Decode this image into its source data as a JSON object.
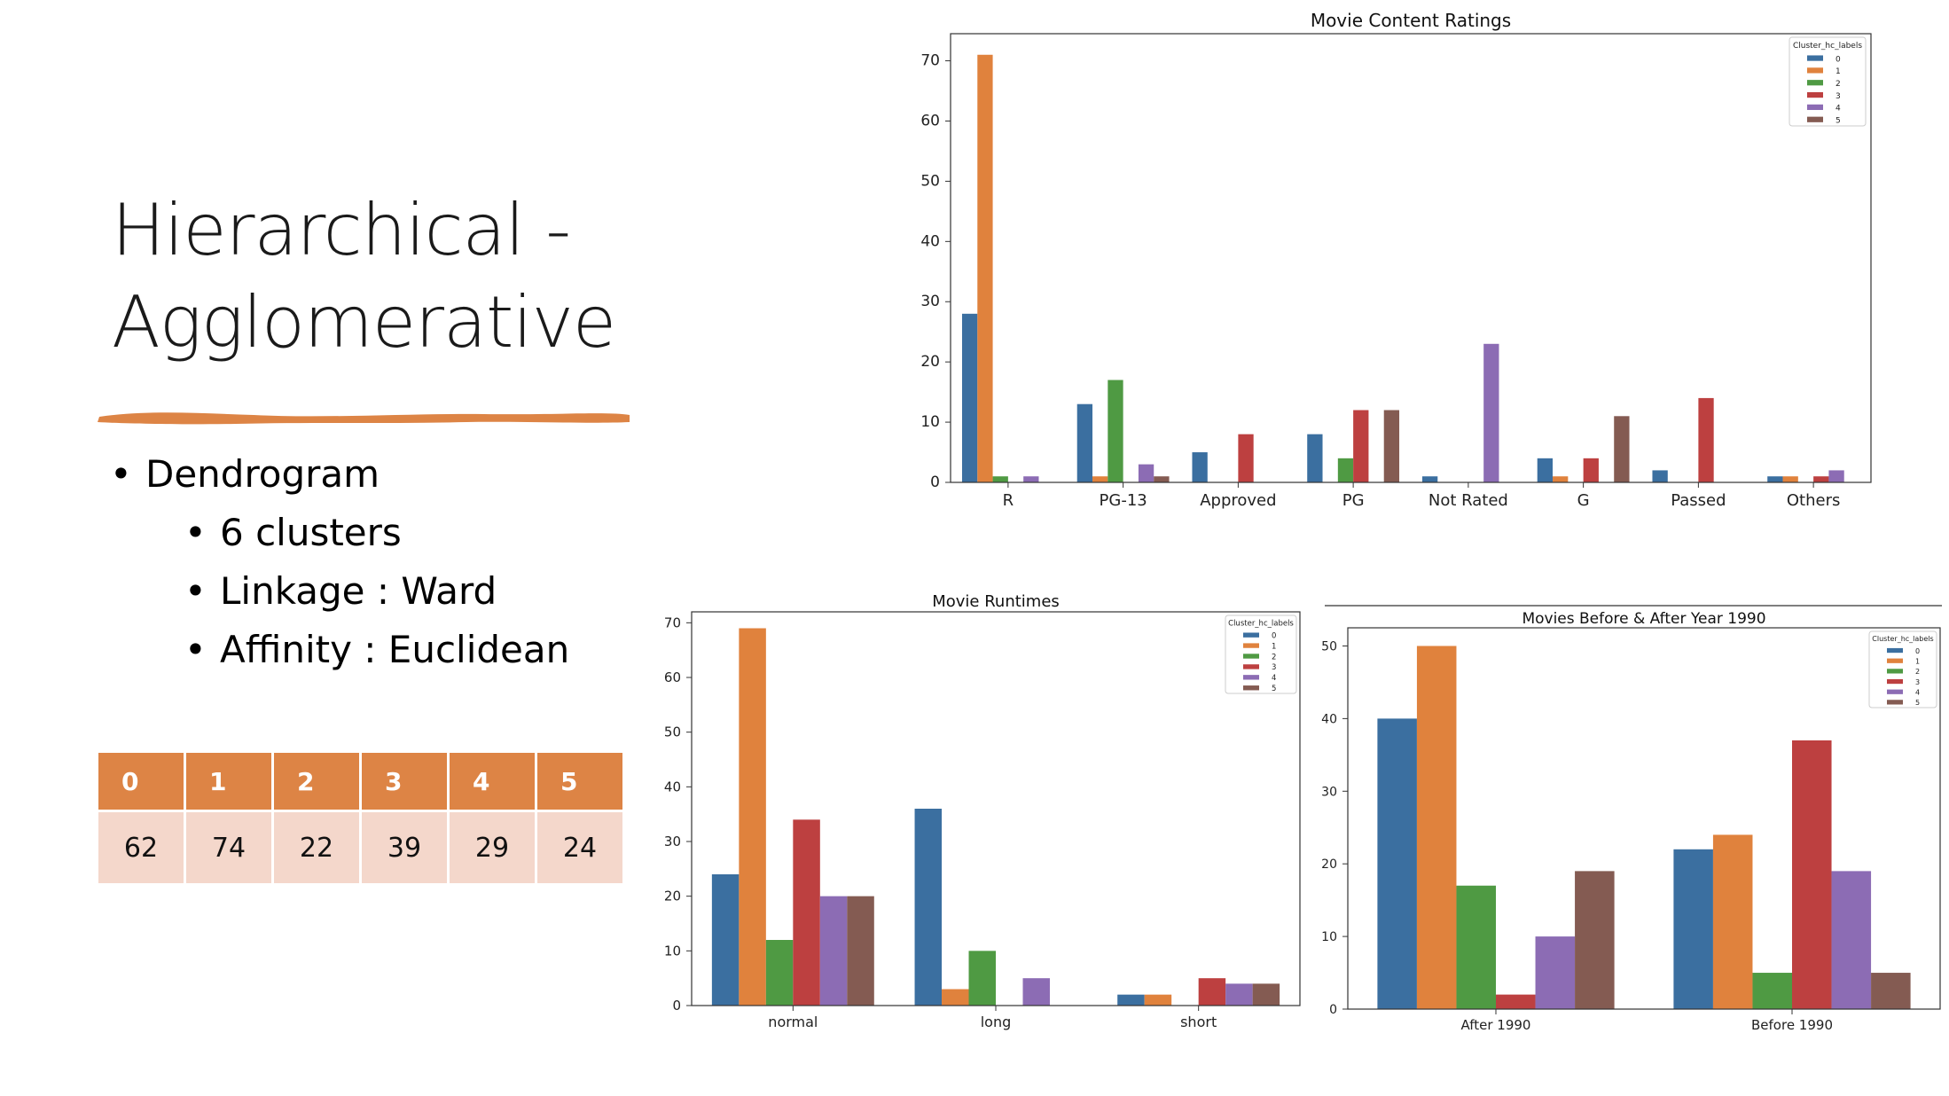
{
  "slide": {
    "title_lines": [
      "Hierarchical -",
      "Agglomerative"
    ],
    "accent_color": "#dd8445",
    "bullets": {
      "main": "Dendrogram",
      "sub": [
        "6 clusters",
        "Linkage : Ward",
        "Affinity : Euclidean"
      ]
    },
    "cluster_table": {
      "headers": [
        "0",
        "1",
        "2",
        "3",
        "4",
        "5"
      ],
      "counts": [
        "62",
        "74",
        "22",
        "39",
        "29",
        "24"
      ]
    }
  },
  "chart_data": [
    {
      "type": "bar",
      "title": "Movie Content Ratings",
      "categories": [
        "R",
        "PG-13",
        "Approved",
        "PG",
        "Not Rated",
        "G",
        "Passed",
        "Others"
      ],
      "legend_title": "Cluster_hc_labels",
      "legend_position": "top-right",
      "ylim": [
        0,
        74.5
      ],
      "yticks": [
        0,
        10,
        20,
        30,
        40,
        50,
        60,
        70
      ],
      "series": [
        {
          "name": "0",
          "color": "#3b6fa0",
          "values": [
            28,
            13,
            5,
            8,
            1,
            4,
            2,
            1
          ]
        },
        {
          "name": "1",
          "color": "#e0823d",
          "values": [
            71,
            1,
            0,
            0,
            0,
            1,
            0,
            1
          ]
        },
        {
          "name": "2",
          "color": "#4f9a43",
          "values": [
            1,
            17,
            0,
            4,
            0,
            0,
            0,
            0
          ]
        },
        {
          "name": "3",
          "color": "#bd4040",
          "values": [
            0,
            0,
            8,
            12,
            0,
            4,
            14,
            1
          ]
        },
        {
          "name": "4",
          "color": "#8c6cb4",
          "values": [
            1,
            3,
            0,
            0,
            23,
            0,
            0,
            2
          ]
        },
        {
          "name": "5",
          "color": "#845b52",
          "values": [
            0,
            1,
            0,
            12,
            0,
            11,
            0,
            0
          ]
        }
      ]
    },
    {
      "type": "bar",
      "title": "Movie Runtimes",
      "categories": [
        "normal",
        "long",
        "short"
      ],
      "legend_title": "Cluster_hc_labels",
      "legend_position": "top-right",
      "ylim": [
        0,
        72
      ],
      "yticks": [
        0,
        10,
        20,
        30,
        40,
        50,
        60,
        70
      ],
      "series": [
        {
          "name": "0",
          "color": "#3b6fa0",
          "values": [
            24,
            36,
            2
          ]
        },
        {
          "name": "1",
          "color": "#e0823d",
          "values": [
            69,
            3,
            2
          ]
        },
        {
          "name": "2",
          "color": "#4f9a43",
          "values": [
            12,
            10,
            0
          ]
        },
        {
          "name": "3",
          "color": "#bd4040",
          "values": [
            34,
            0,
            5
          ]
        },
        {
          "name": "4",
          "color": "#8c6cb4",
          "values": [
            20,
            5,
            4
          ]
        },
        {
          "name": "5",
          "color": "#845b52",
          "values": [
            20,
            0,
            4
          ]
        }
      ]
    },
    {
      "type": "bar",
      "title": "Movies Before & After Year 1990",
      "categories": [
        "After 1990",
        "Before 1990"
      ],
      "legend_title": "Cluster_hc_labels",
      "legend_position": "top-right",
      "ylim": [
        0,
        52.5
      ],
      "yticks": [
        0,
        10,
        20,
        30,
        40,
        50
      ],
      "series": [
        {
          "name": "0",
          "color": "#3b6fa0",
          "values": [
            40,
            22
          ]
        },
        {
          "name": "1",
          "color": "#e0823d",
          "values": [
            50,
            24
          ]
        },
        {
          "name": "2",
          "color": "#4f9a43",
          "values": [
            17,
            5
          ]
        },
        {
          "name": "3",
          "color": "#bd4040",
          "values": [
            2,
            37
          ]
        },
        {
          "name": "4",
          "color": "#8c6cb4",
          "values": [
            10,
            19
          ]
        },
        {
          "name": "5",
          "color": "#845b52",
          "values": [
            19,
            5
          ]
        }
      ]
    }
  ]
}
